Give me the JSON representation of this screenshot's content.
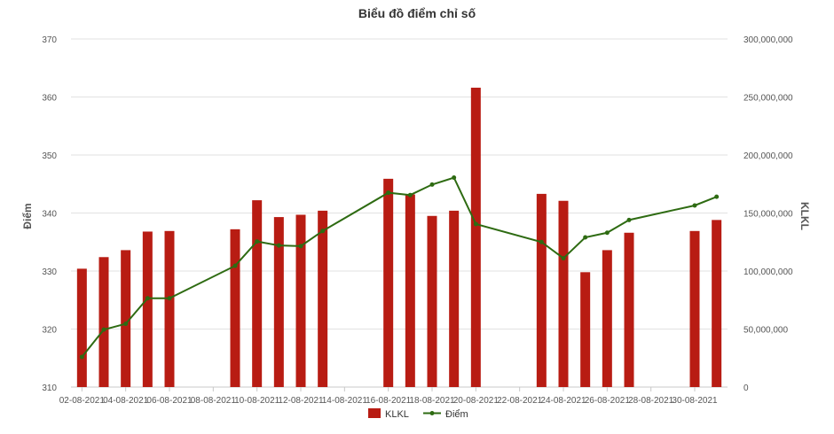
{
  "chart_data": {
    "type": "bar+line",
    "title": "Biểu đồ điểm chỉ số",
    "y_left": {
      "label": "Điểm",
      "ylim": [
        310,
        370
      ],
      "ticks": [
        "310",
        "320",
        "330",
        "340",
        "350",
        "360",
        "370"
      ]
    },
    "y_right": {
      "label": "KLKL",
      "ylim": [
        0,
        300000000
      ],
      "ticks": [
        "0",
        "50,000,000",
        "100,000,000",
        "150,000,000",
        "200,000,000",
        "250,000,000",
        "300,000,000"
      ]
    },
    "x_range": [
      "02-08-2021",
      "31-08-2021"
    ],
    "x_tick_labels": [
      "02-08-2021",
      "04-08-2021",
      "06-08-2021",
      "08-08-2021",
      "10-08-2021",
      "12-08-2021",
      "14-08-2021",
      "16-08-2021",
      "18-08-2021",
      "20-08-2021",
      "22-08-2021",
      "24-08-2021",
      "26-08-2021",
      "28-08-2021",
      "30-08-2021"
    ],
    "grid": true,
    "legend": "bottom-center",
    "series": [
      {
        "name": "KLKL",
        "kind": "bar",
        "axis": "right",
        "color": "#b81c13",
        "points": [
          {
            "x": "02-08-2021",
            "y": 102000000
          },
          {
            "x": "03-08-2021",
            "y": 112000000
          },
          {
            "x": "04-08-2021",
            "y": 118000000
          },
          {
            "x": "05-08-2021",
            "y": 134000000
          },
          {
            "x": "06-08-2021",
            "y": 134500000
          },
          {
            "x": "09-08-2021",
            "y": 136000000
          },
          {
            "x": "10-08-2021",
            "y": 161000000
          },
          {
            "x": "11-08-2021",
            "y": 146500000
          },
          {
            "x": "12-08-2021",
            "y": 148500000
          },
          {
            "x": "13-08-2021",
            "y": 152000000
          },
          {
            "x": "16-08-2021",
            "y": 179500000
          },
          {
            "x": "17-08-2021",
            "y": 166000000
          },
          {
            "x": "18-08-2021",
            "y": 147500000
          },
          {
            "x": "19-08-2021",
            "y": 152000000
          },
          {
            "x": "20-08-2021",
            "y": 258000000
          },
          {
            "x": "23-08-2021",
            "y": 166500000
          },
          {
            "x": "24-08-2021",
            "y": 160500000
          },
          {
            "x": "25-08-2021",
            "y": 99000000
          },
          {
            "x": "26-08-2021",
            "y": 118000000
          },
          {
            "x": "27-08-2021",
            "y": 133000000
          },
          {
            "x": "30-08-2021",
            "y": 134500000
          },
          {
            "x": "31-08-2021",
            "y": 144000000
          }
        ]
      },
      {
        "name": "Điểm",
        "kind": "line",
        "axis": "left",
        "color": "#2e6b12",
        "points": [
          {
            "x": "02-08-2021",
            "y": 315.2
          },
          {
            "x": "03-08-2021",
            "y": 319.9
          },
          {
            "x": "04-08-2021",
            "y": 320.9
          },
          {
            "x": "05-08-2021",
            "y": 325.3
          },
          {
            "x": "06-08-2021",
            "y": 325.3
          },
          {
            "x": "09-08-2021",
            "y": 330.9
          },
          {
            "x": "10-08-2021",
            "y": 335.1
          },
          {
            "x": "11-08-2021",
            "y": 334.4
          },
          {
            "x": "12-08-2021",
            "y": 334.3
          },
          {
            "x": "13-08-2021",
            "y": 336.9
          },
          {
            "x": "16-08-2021",
            "y": 343.5
          },
          {
            "x": "17-08-2021",
            "y": 343.1
          },
          {
            "x": "18-08-2021",
            "y": 344.9
          },
          {
            "x": "19-08-2021",
            "y": 346.1
          },
          {
            "x": "20-08-2021",
            "y": 338.1
          },
          {
            "x": "23-08-2021",
            "y": 335.0
          },
          {
            "x": "24-08-2021",
            "y": 332.2
          },
          {
            "x": "25-08-2021",
            "y": 335.8
          },
          {
            "x": "26-08-2021",
            "y": 336.6
          },
          {
            "x": "27-08-2021",
            "y": 338.8
          },
          {
            "x": "30-08-2021",
            "y": 341.3
          },
          {
            "x": "31-08-2021",
            "y": 342.8
          }
        ]
      }
    ]
  }
}
